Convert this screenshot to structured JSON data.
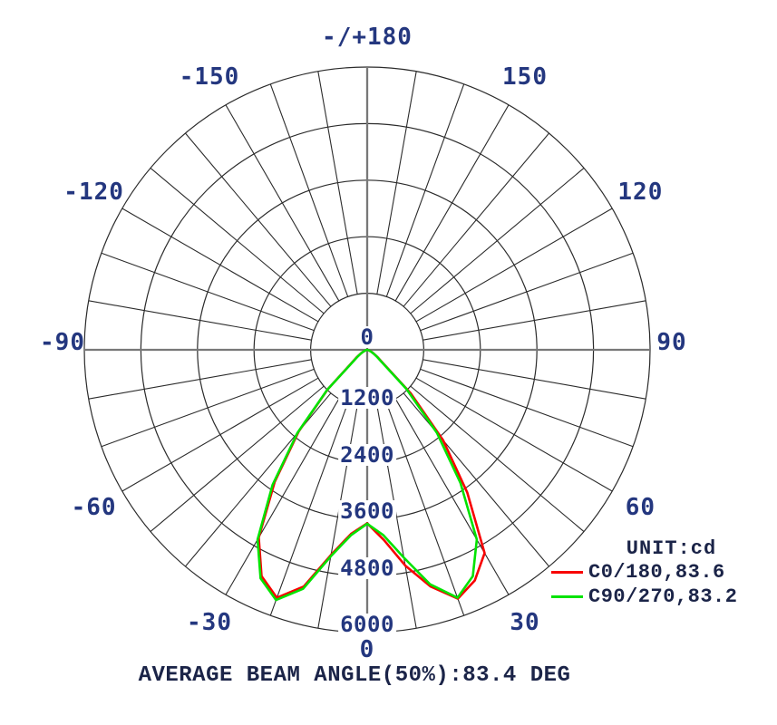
{
  "chart_data": {
    "type": "line",
    "polar": true,
    "title": "",
    "unit_label": "UNIT:cd",
    "unit": "cd",
    "caption": "AVERAGE BEAM ANGLE(50%):83.4 DEG",
    "average_beam_angle_deg": 83.4,
    "angle_axis": {
      "zero_direction": "down",
      "grid_step_deg": 10,
      "label_step_deg": 30,
      "labels": [
        {
          "angle": 180,
          "text": "-/+180"
        },
        {
          "angle": -150,
          "text": "-150"
        },
        {
          "angle": 150,
          "text": "150"
        },
        {
          "angle": -120,
          "text": "-120"
        },
        {
          "angle": 120,
          "text": "120"
        },
        {
          "angle": -90,
          "text": "-90"
        },
        {
          "angle": 90,
          "text": "90"
        },
        {
          "angle": -60,
          "text": "-60"
        },
        {
          "angle": 60,
          "text": "60"
        },
        {
          "angle": -30,
          "text": "-30"
        },
        {
          "angle": 30,
          "text": "30"
        },
        {
          "angle": 0,
          "text": "0"
        }
      ]
    },
    "radial_axis": {
      "min": 0,
      "max": 6000,
      "tick_step": 1200,
      "ticks": [
        0,
        1200,
        2400,
        3600,
        4800,
        6000
      ],
      "tick_labels": [
        "0",
        "1200",
        "2400",
        "3600",
        "4800",
        "6000"
      ]
    },
    "series": [
      {
        "name": "C0/180,83.6",
        "plane": "C0/180",
        "beam_angle_deg": 83.6,
        "color": "#f80000",
        "points": [
          [
            -90,
            0
          ],
          [
            -85,
            5
          ],
          [
            -80,
            10
          ],
          [
            -75,
            25
          ],
          [
            -70,
            50
          ],
          [
            -65,
            95
          ],
          [
            -60,
            160
          ],
          [
            -55,
            260
          ],
          [
            -50,
            430
          ],
          [
            -45,
            1180
          ],
          [
            -40,
            2260
          ],
          [
            -35,
            3420
          ],
          [
            -30,
            4600
          ],
          [
            -25,
            5300
          ],
          [
            -20,
            5600
          ],
          [
            -15,
            5200
          ],
          [
            -10,
            4420
          ],
          [
            -5,
            3920
          ],
          [
            0,
            3680
          ],
          [
            5,
            4050
          ],
          [
            10,
            4650
          ],
          [
            15,
            5200
          ],
          [
            20,
            5620
          ],
          [
            25,
            5400
          ],
          [
            30,
            4980
          ],
          [
            35,
            3700
          ],
          [
            40,
            2500
          ],
          [
            45,
            1300
          ],
          [
            50,
            430
          ],
          [
            55,
            260
          ],
          [
            60,
            160
          ],
          [
            65,
            95
          ],
          [
            70,
            50
          ],
          [
            75,
            25
          ],
          [
            80,
            10
          ],
          [
            85,
            5
          ],
          [
            90,
            0
          ]
        ]
      },
      {
        "name": "C90/270,83.2",
        "plane": "C90/270",
        "beam_angle_deg": 83.2,
        "color": "#00e300",
        "points": [
          [
            -90,
            0
          ],
          [
            -85,
            5
          ],
          [
            -80,
            10
          ],
          [
            -75,
            25
          ],
          [
            -70,
            50
          ],
          [
            -65,
            90
          ],
          [
            -60,
            150
          ],
          [
            -55,
            250
          ],
          [
            -50,
            400
          ],
          [
            -45,
            1200
          ],
          [
            -40,
            2300
          ],
          [
            -35,
            3500
          ],
          [
            -30,
            4650
          ],
          [
            -25,
            5350
          ],
          [
            -20,
            5650
          ],
          [
            -15,
            5250
          ],
          [
            -10,
            4450
          ],
          [
            -5,
            3950
          ],
          [
            0,
            3690
          ],
          [
            5,
            3950
          ],
          [
            10,
            4480
          ],
          [
            15,
            5150
          ],
          [
            20,
            5600
          ],
          [
            25,
            5300
          ],
          [
            30,
            4650
          ],
          [
            35,
            3450
          ],
          [
            40,
            2300
          ],
          [
            45,
            1180
          ],
          [
            50,
            400
          ],
          [
            55,
            250
          ],
          [
            60,
            150
          ],
          [
            65,
            90
          ],
          [
            70,
            50
          ],
          [
            75,
            25
          ],
          [
            80,
            10
          ],
          [
            85,
            5
          ],
          [
            90,
            0
          ]
        ]
      }
    ],
    "legend_position": "right-bottom",
    "grid": true
  },
  "colors": {
    "background": "#ffffff",
    "grid_line": "#2b2b2b",
    "axis_line": "#787878",
    "number_label": "#24377f",
    "text_dark": "#1b2448",
    "series_c0": "#f80000",
    "series_c90": "#00e300"
  }
}
